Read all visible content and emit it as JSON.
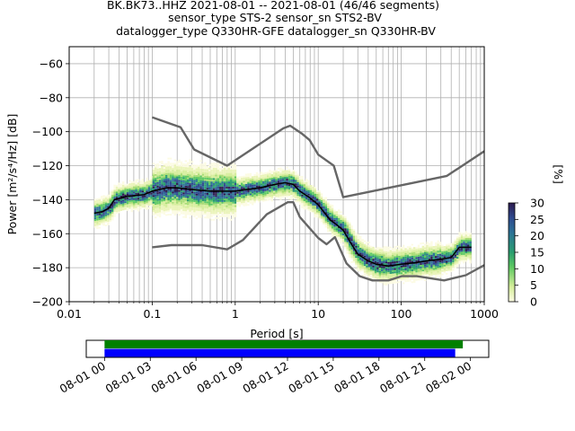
{
  "header": {
    "line1": "BK.BK73..HHZ   2021-08-01 -- 2021-08-01  (46/46 segments)",
    "line2": "sensor_type STS-2 sensor_sn STS2-BV",
    "line3": "datalogger_type Q330HR-GFE datalogger_sn Q330HR-BV"
  },
  "colorbar": {
    "label": "[%]",
    "ticks": [
      "0",
      "5",
      "10",
      "15",
      "20",
      "25",
      "30"
    ],
    "tick_values": [
      0,
      5,
      10,
      15,
      20,
      25,
      30
    ]
  },
  "chart_data": {
    "type": "heatmap",
    "title": "BK.BK73..HHZ   2021-08-01 -- 2021-08-01  (46/46 segments)",
    "xlabel": "Period [s]",
    "ylabel": "Power [m²/s⁴/Hz] [dB]",
    "x_scale": "log",
    "xlim": [
      0.01,
      1000
    ],
    "ylim": [
      -200,
      -50
    ],
    "x_ticks": [
      0.01,
      0.1,
      1,
      10,
      100,
      1000
    ],
    "x_tick_labels": [
      "0.01",
      "0.1",
      "1",
      "10",
      "100",
      "1000"
    ],
    "y_ticks": [
      -200,
      -180,
      -160,
      -140,
      -120,
      -100,
      -80,
      -60
    ],
    "y_tick_labels": [
      "−200",
      "−180",
      "−160",
      "−140",
      "−120",
      "−100",
      "−80",
      "−60"
    ],
    "grid": true,
    "colorbar_range": [
      0,
      30
    ],
    "colors": {
      "noise_model": "#666666",
      "mean_curve": "#000000",
      "coverage_green": "#008000",
      "coverage_blue": "#0000ff"
    },
    "series": [
      {
        "name": "",
        "kind": "noise-model-high",
        "x": [
          0.1,
          0.22,
          0.32,
          0.8,
          3.8,
          4.6,
          6.3,
          7.9,
          10,
          15.4,
          20,
          354.8,
          1000
        ],
        "y": [
          -91.5,
          -97.4,
          -110.5,
          -120,
          -98,
          -96.5,
          -101,
          -105,
          -113.5,
          -120,
          -138.5,
          -126,
          -111.5
        ]
      },
      {
        "name": "",
        "kind": "noise-model-low",
        "x": [
          0.1,
          0.17,
          0.4,
          0.8,
          1.24,
          2.4,
          4.3,
          5,
          6,
          10,
          12.6,
          15.9,
          21.9,
          31.6,
          45,
          70,
          101,
          154,
          328,
          600,
          1000
        ],
        "y": [
          -168,
          -166.7,
          -166.7,
          -169.2,
          -163.7,
          -148.6,
          -141.5,
          -141.5,
          -150.2,
          -162.5,
          -166.2,
          -162,
          -177.5,
          -185,
          -187.5,
          -187.5,
          -185,
          -185,
          -187.5,
          -184.4,
          -178.5
        ]
      },
      {
        "name": "",
        "kind": "mean",
        "x": [
          0.02,
          0.025,
          0.03,
          0.035,
          0.05,
          0.08,
          0.1,
          0.15,
          0.2,
          0.3,
          0.5,
          1,
          2,
          3,
          4,
          5,
          6,
          8,
          10,
          14,
          17,
          20,
          25,
          30,
          40,
          50,
          70,
          100,
          150,
          200,
          300,
          400,
          500,
          700
        ],
        "y": [
          -148,
          -147,
          -145,
          -140,
          -138,
          -137,
          -135,
          -133,
          -133,
          -134,
          -135,
          -135,
          -133,
          -131,
          -130,
          -131,
          -135,
          -139,
          -143,
          -152,
          -155,
          -158,
          -166,
          -172,
          -176,
          -178,
          -179,
          -178,
          -177,
          -176,
          -175,
          -174,
          -168,
          -168
        ]
      }
    ],
    "coverage": {
      "x_ticks": [
        "08-01 00",
        "08-01 03",
        "08-01 06",
        "08-01 09",
        "08-01 12",
        "08-01 15",
        "08-01 18",
        "08-01 21",
        "08-02 00"
      ],
      "x_range_hours": [
        -1.2,
        25.2
      ],
      "bars": [
        {
          "color": "#008000",
          "start_hour": 0,
          "end_hour": 23.5
        },
        {
          "color": "#0000ff",
          "start_hour": 0,
          "end_hour": 23.0
        }
      ]
    }
  }
}
